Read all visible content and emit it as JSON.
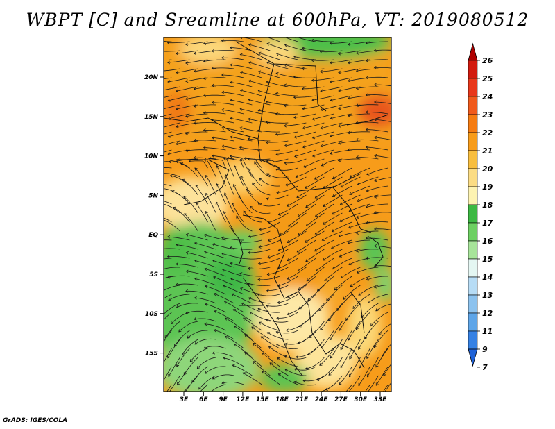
{
  "title": "WBPT [C] and Sreamline at 600hPa, VT: 2019080512",
  "footer": "GrADS: IGES/COLA",
  "map": {
    "lat_ticks": [
      "20N",
      "15N",
      "10N",
      "5N",
      "EQ",
      "5S",
      "10S",
      "15S"
    ],
    "lon_ticks": [
      "3E",
      "6E",
      "9E",
      "12E",
      "15E",
      "18E",
      "21E",
      "24E",
      "27E",
      "30E",
      "33E"
    ]
  },
  "colorbar": {
    "labels": [
      "26",
      "25",
      "24",
      "23",
      "22",
      "21",
      "20",
      "19",
      "18",
      "17",
      "16",
      "15",
      "14",
      "13",
      "12",
      "11",
      "9",
      "7"
    ],
    "colors": [
      "#b00000",
      "#d21a0e",
      "#e8371a",
      "#f05a1c",
      "#f57c12",
      "#f79c1a",
      "#f8be3e",
      "#fbdc84",
      "#fdf3b2",
      "#3cb843",
      "#6ccf62",
      "#a7e49a",
      "#e4f6f2",
      "#b7dcf5",
      "#8cc2ee",
      "#5ea5e8",
      "#3581e4",
      "#1f62d8"
    ]
  }
}
